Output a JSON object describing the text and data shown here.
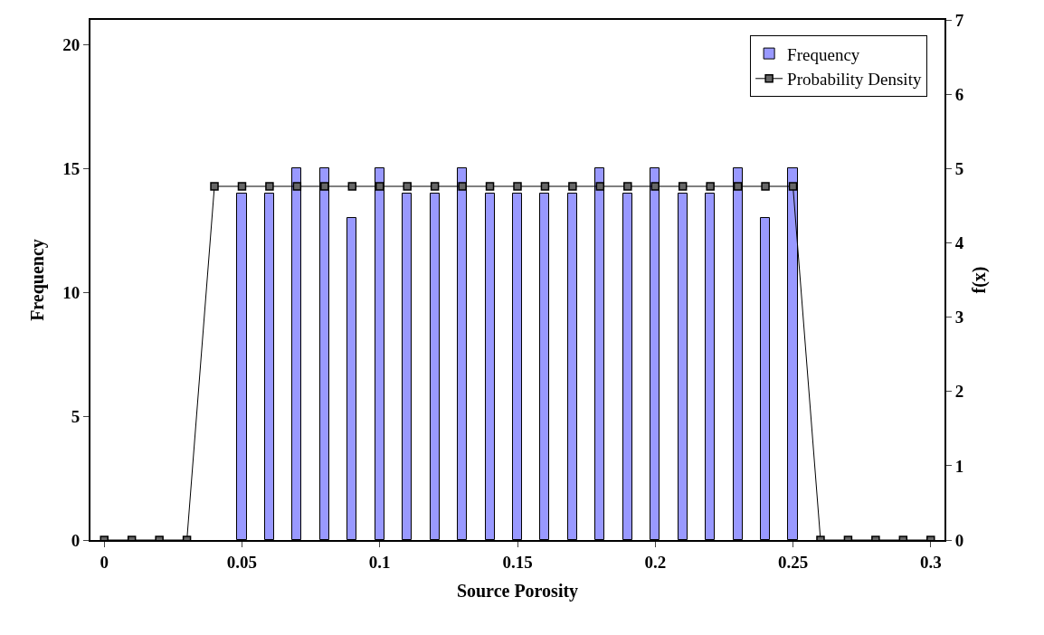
{
  "chart_data": {
    "type": "bar",
    "xlabel": "Source Porosity",
    "ylabel": "Frequency",
    "y2label": "f(x)",
    "xlim": [
      -0.005,
      0.305
    ],
    "xticks": [
      0,
      0.05,
      0.1,
      0.15,
      0.2,
      0.25,
      0.3
    ],
    "ylim": [
      0,
      21
    ],
    "yticks": [
      0,
      5,
      10,
      15,
      20
    ],
    "y2lim": [
      0,
      7
    ],
    "y2ticks": [
      0,
      1,
      2,
      3,
      4,
      5,
      6,
      7
    ],
    "legend": "top right",
    "series": [
      {
        "name": "Frequency",
        "color": "#9999ff",
        "x": [
          0.05,
          0.06,
          0.07,
          0.08,
          0.09,
          0.1,
          0.11,
          0.12,
          0.13,
          0.14,
          0.15,
          0.16,
          0.17,
          0.18,
          0.19,
          0.2,
          0.21,
          0.22,
          0.23,
          0.24,
          0.25
        ],
        "values": [
          14,
          14,
          15,
          15,
          13,
          15,
          14,
          14,
          15,
          14,
          14,
          14,
          14,
          15,
          14,
          15,
          14,
          14,
          15,
          13,
          15
        ]
      },
      {
        "name": "Probability Density",
        "type": "line",
        "axis": "y2",
        "color": "#000000",
        "marker": "square",
        "x": [
          0,
          0.01,
          0.02,
          0.03,
          0.04,
          0.05,
          0.06,
          0.07,
          0.08,
          0.09,
          0.1,
          0.11,
          0.12,
          0.13,
          0.14,
          0.15,
          0.16,
          0.17,
          0.18,
          0.19,
          0.2,
          0.21,
          0.22,
          0.23,
          0.24,
          0.25,
          0.26,
          0.27,
          0.28,
          0.29,
          0.3
        ],
        "values": [
          0,
          0,
          0,
          0,
          4.76,
          4.76,
          4.76,
          4.76,
          4.76,
          4.76,
          4.76,
          4.76,
          4.76,
          4.76,
          4.76,
          4.76,
          4.76,
          4.76,
          4.76,
          4.76,
          4.76,
          4.76,
          4.76,
          4.76,
          4.76,
          4.76,
          0,
          0,
          0,
          0,
          0
        ]
      }
    ]
  }
}
